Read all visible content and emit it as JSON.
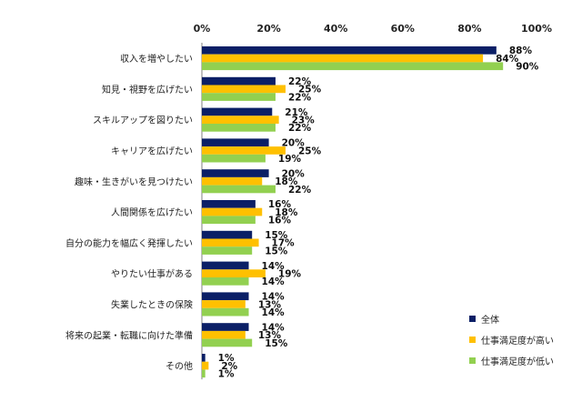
{
  "chart_data": {
    "type": "bar",
    "orientation": "horizontal",
    "categories": [
      "収入を増やしたい",
      "知見・視野を広げたい",
      "スキルアップを図りたい",
      "キャリアを広げたい",
      "趣味・生きがいを見つけたい",
      "人間関係を広げたい",
      "自分の能力を幅広く発揮したい",
      "やりたい仕事がある",
      "失業したときの保険",
      "将来の起業・転職に向けた準備",
      "その他"
    ],
    "series": [
      {
        "name": "全体",
        "color": "#0b1f66",
        "values": [
          88,
          22,
          21,
          20,
          20,
          16,
          15,
          14,
          14,
          14,
          1
        ]
      },
      {
        "name": "仕事満足度が高い",
        "color": "#ffc000",
        "values": [
          84,
          25,
          23,
          25,
          18,
          18,
          17,
          19,
          13,
          13,
          2
        ]
      },
      {
        "name": "仕事満足度が低い",
        "color": "#92d050",
        "values": [
          90,
          22,
          22,
          19,
          22,
          16,
          15,
          14,
          14,
          15,
          1
        ]
      }
    ],
    "xlim": [
      0,
      100
    ],
    "xticks": [
      "0%",
      "20%",
      "40%",
      "60%",
      "80%",
      "100%"
    ],
    "value_suffix": "%",
    "title": "",
    "xlabel": "",
    "ylabel": "",
    "grid": false,
    "legend_position": "bottom-right"
  }
}
